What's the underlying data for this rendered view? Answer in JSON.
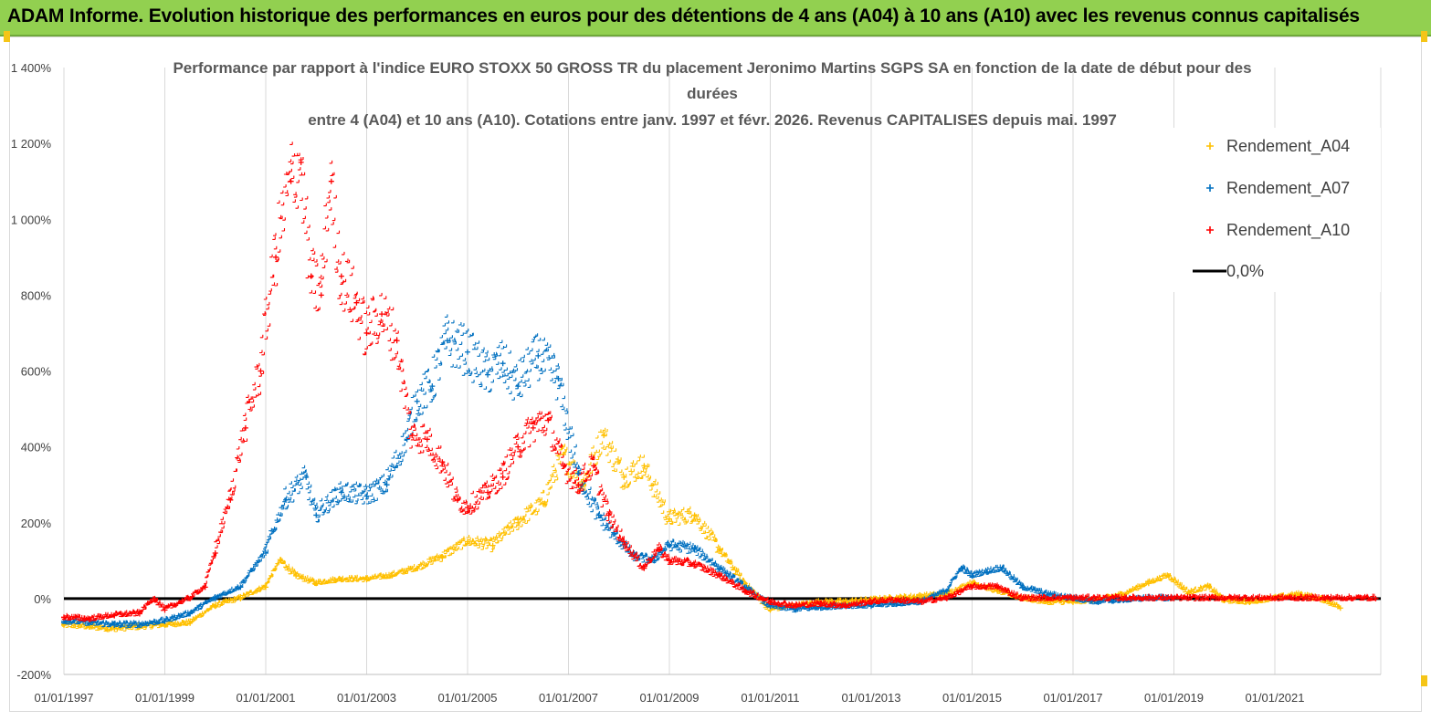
{
  "banner": {
    "text": "ADAM Informe. Evolution historique des performances en euros pour des détentions de 4 ans (A04) à 10 ans (A10) avec les revenus connus capitalisés",
    "color": "#92d050"
  },
  "chart_data": {
    "type": "scatter",
    "title_lines": [
      "Performance par rapport à l'indice EURO STOXX 50 GROSS TR  du placement Jeronimo Martins SGPS SA en fonction de la date de début pour des",
      "durées",
      "entre 4 (A04) et 10 ans (A10). Cotations entre janv. 1997 et févr. 2026. Revenus CAPITALISES depuis mai. 1997"
    ],
    "y_ticks": [
      "1 400%",
      "1 200%",
      "1 000%",
      "800%",
      "600%",
      "400%",
      "200%",
      "0%",
      "-200%"
    ],
    "ylim": [
      -200,
      1400
    ],
    "x_ticks": [
      "01/01/1997",
      "01/01/1999",
      "01/01/2001",
      "01/01/2003",
      "01/01/2005",
      "01/01/2007",
      "01/01/2009",
      "01/01/2011",
      "01/01/2013",
      "01/01/2015",
      "01/01/2017",
      "01/01/2019",
      "01/01/2021"
    ],
    "xlim": [
      1997.0,
      2023.1
    ],
    "reference_line": {
      "name": "0,0%",
      "value": 0,
      "color": "#000000"
    },
    "series": [
      {
        "name": "Rendement_A04",
        "color": "#ffc000",
        "x": [
          1997.0,
          1997.5,
          1998.0,
          1998.5,
          1999.0,
          1999.5,
          2000.0,
          2000.5,
          2001.0,
          2001.3,
          2001.6,
          2002.0,
          2002.5,
          2003.0,
          2003.5,
          2004.0,
          2004.5,
          2005.0,
          2005.5,
          2006.0,
          2006.5,
          2006.9,
          2007.3,
          2007.7,
          2008.1,
          2008.5,
          2009.0,
          2009.5,
          2010.0,
          2010.5,
          2011.0,
          2011.5,
          2012.0,
          2012.5,
          2013.0,
          2013.5,
          2014.0,
          2014.5,
          2015.0,
          2015.5,
          2016.0,
          2016.5,
          2017.0,
          2017.5,
          2018.0,
          2018.5,
          2018.9,
          2019.3,
          2019.7,
          2020.0,
          2020.5,
          2021.0,
          2021.5,
          2022.0,
          2022.3
        ],
        "y": [
          -70,
          -75,
          -80,
          -75,
          -70,
          -65,
          -20,
          0,
          30,
          100,
          60,
          40,
          50,
          50,
          60,
          80,
          110,
          150,
          140,
          200,
          250,
          380,
          300,
          430,
          320,
          350,
          210,
          220,
          130,
          40,
          -30,
          -20,
          -10,
          -10,
          -5,
          0,
          5,
          10,
          40,
          20,
          0,
          -10,
          -10,
          -5,
          10,
          40,
          60,
          15,
          30,
          -5,
          -10,
          0,
          10,
          -5,
          -25
        ]
      },
      {
        "name": "Rendement_A07",
        "color": "#0070c0",
        "x": [
          1997.0,
          1997.5,
          1998.0,
          1998.5,
          1999.0,
          1999.5,
          2000.0,
          2000.5,
          2001.0,
          2001.4,
          2001.8,
          2002.0,
          2002.5,
          2003.0,
          2003.4,
          2003.8,
          2004.0,
          2004.3,
          2004.6,
          2005.0,
          2005.4,
          2005.7,
          2006.0,
          2006.4,
          2006.8,
          2007.2,
          2007.6,
          2007.9,
          2008.3,
          2008.7,
          2009.0,
          2009.5,
          2010.0,
          2010.5,
          2011.0,
          2011.5,
          2012.0,
          2012.5,
          2013.0,
          2013.5,
          2014.0,
          2014.5,
          2014.8,
          2015.0,
          2015.3,
          2015.6,
          2016.0,
          2016.5,
          2017.0,
          2017.5,
          2018.0,
          2018.5,
          2019.0
        ],
        "y": [
          -60,
          -65,
          -70,
          -70,
          -60,
          -40,
          0,
          30,
          120,
          260,
          320,
          220,
          280,
          270,
          300,
          420,
          520,
          560,
          680,
          650,
          590,
          620,
          560,
          640,
          580,
          330,
          220,
          170,
          110,
          100,
          140,
          130,
          80,
          30,
          -20,
          -30,
          -25,
          -20,
          -20,
          -15,
          -10,
          20,
          80,
          60,
          70,
          80,
          30,
          10,
          0,
          -10,
          -5,
          0,
          0
        ]
      },
      {
        "name": "Rendement_A10",
        "color": "#ff0000",
        "x": [
          1997.0,
          1997.5,
          1998.0,
          1998.5,
          1998.8,
          1999.0,
          1999.5,
          1999.8,
          2000.0,
          2000.3,
          2000.6,
          2000.9,
          2001.2,
          2001.5,
          2001.7,
          2001.9,
          2002.1,
          2002.3,
          2002.5,
          2002.8,
          2003.0,
          2003.3,
          2003.6,
          2003.9,
          2004.2,
          2004.5,
          2004.8,
          2005.0,
          2005.4,
          2005.7,
          2006.0,
          2006.3,
          2006.6,
          2006.9,
          2007.2,
          2007.5,
          2007.8,
          2008.1,
          2008.5,
          2008.8,
          2009.0,
          2009.5,
          2010.0,
          2010.5,
          2011.0,
          2011.5,
          2012.0,
          2012.5,
          2013.0,
          2013.5,
          2014.0,
          2014.5,
          2015.0,
          2015.5,
          2016.0,
          2016.5,
          2017.0,
          2018.0,
          2019.0,
          2020.0,
          2021.0,
          2022.0,
          2023.0
        ],
        "y": [
          -50,
          -55,
          -45,
          -40,
          0,
          -30,
          0,
          30,
          120,
          260,
          450,
          600,
          900,
          1100,
          1150,
          850,
          800,
          1100,
          850,
          780,
          700,
          750,
          680,
          430,
          420,
          360,
          260,
          240,
          280,
          320,
          400,
          450,
          470,
          350,
          300,
          350,
          220,
          150,
          80,
          130,
          100,
          90,
          60,
          20,
          -10,
          -20,
          -15,
          -20,
          -10,
          -5,
          -10,
          0,
          30,
          30,
          0,
          0,
          0,
          0,
          0,
          0,
          0,
          0,
          0
        ]
      }
    ],
    "legend": {
      "position": "top-right",
      "entries": [
        "Rendement_A04",
        "Rendement_A07",
        "Rendement_A10",
        "0,0%"
      ]
    }
  }
}
